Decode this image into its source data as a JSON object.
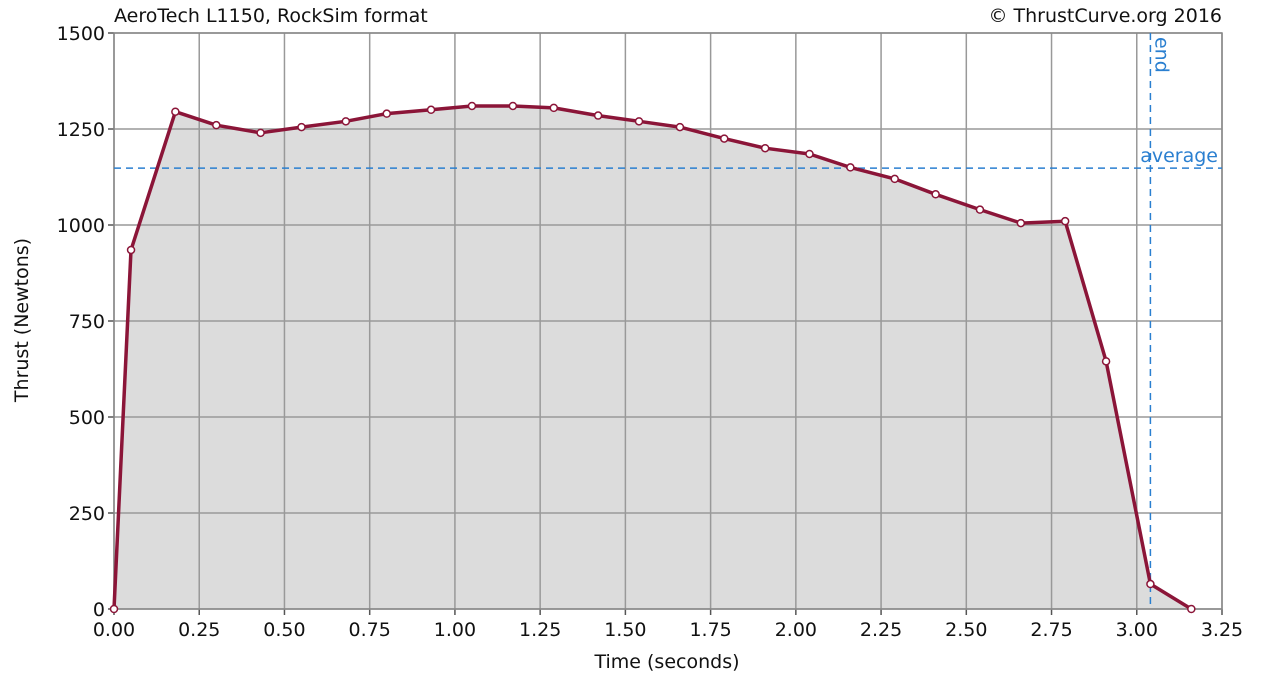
{
  "chart_data": {
    "type": "line",
    "title": "AeroTech L1150, RockSim format",
    "credit": "© ThrustCurve.org 2016",
    "xlabel": "Time (seconds)",
    "ylabel": "Thrust (Newtons)",
    "xlim": [
      0,
      3.25
    ],
    "ylim": [
      0,
      1500
    ],
    "x_ticks": [
      "0.00",
      "0.25",
      "0.50",
      "0.75",
      "1.00",
      "1.25",
      "1.50",
      "1.75",
      "2.00",
      "2.25",
      "2.50",
      "2.75",
      "3.00",
      "3.25"
    ],
    "y_ticks": [
      "0",
      "250",
      "500",
      "750",
      "1000",
      "1250",
      "1500"
    ],
    "grid": true,
    "filled_area": true,
    "colors": {
      "line": "#8b1538",
      "fill": "#dcdcdc",
      "grid": "#999999",
      "reference": "#2a7fd0"
    },
    "series": [
      {
        "x": [
          0.0,
          0.05,
          0.18,
          0.3,
          0.43,
          0.55,
          0.68,
          0.8,
          0.93,
          1.05,
          1.17,
          1.29,
          1.42,
          1.54,
          1.66,
          1.79,
          1.91,
          2.04,
          2.16,
          2.29,
          2.41,
          2.54,
          2.66,
          2.79,
          2.91,
          3.04,
          3.16
        ],
        "y": [
          0,
          935,
          1295,
          1260,
          1240,
          1255,
          1270,
          1290,
          1300,
          1310,
          1310,
          1305,
          1285,
          1270,
          1255,
          1225,
          1200,
          1185,
          1150,
          1120,
          1080,
          1040,
          1005,
          1010,
          645,
          65,
          0
        ]
      }
    ],
    "reference_lines": [
      {
        "label": "average",
        "axis": "y",
        "value": 1148
      },
      {
        "label": "end",
        "axis": "x",
        "value": 3.04
      }
    ]
  }
}
